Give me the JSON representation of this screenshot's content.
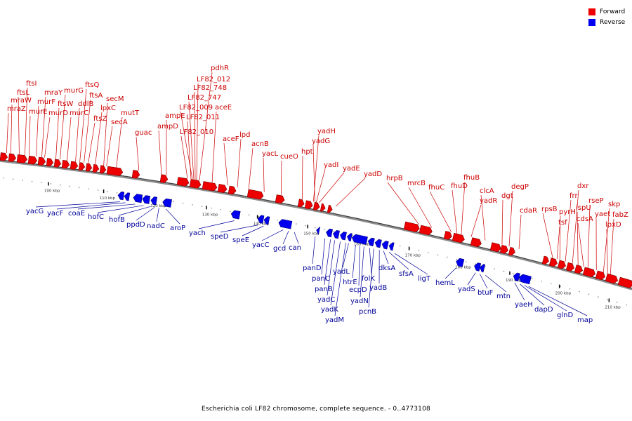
{
  "legend": {
    "forward_label": "Forward",
    "reverse_label": "Reverse",
    "forward_color": "#ee0000",
    "reverse_color": "#0000ee"
  },
  "colors": {
    "forward_label": "#cc0000",
    "reverse_label": "#000099",
    "axis": "#777777"
  },
  "caption": "Escherichia coli LF82 chromosome, complete sequence. - 0..4773108",
  "ticks": [
    "100 kbp",
    "110 kbp",
    "120 kbp",
    "130 kbp",
    "140 kbp",
    "150 kbp",
    "160 kbp",
    "170 kbp",
    "180 kbp",
    "190 kbp",
    "200 kbp",
    "210 kbp"
  ],
  "forward_genes": [
    "mraZ",
    "mraW",
    "ftsL",
    "ftsI",
    "murE",
    "murF",
    "mraY",
    "murD",
    "ftsW",
    "murG",
    "murC",
    "ddlB",
    "ftsQ",
    "ftsA",
    "ftsZ",
    "lpxC",
    "secM",
    "secA",
    "mutT",
    "guac",
    "ampD",
    "ampE",
    "LF82_010",
    "LF82_011",
    "LF82_009",
    "LF82_747",
    "LF82_748",
    "LF82_012",
    "pdhR",
    "aceE",
    "aceF",
    "lpd",
    "acnB",
    "yacL",
    "cueO",
    "hpt",
    "yadI",
    "yadG",
    "yadH",
    "yadE",
    "yadD",
    "hrpB",
    "mrcB",
    "fhuC",
    "fhuD",
    "fhuB",
    "yadR",
    "clcA",
    "dgt",
    "degP",
    "cdaR",
    "rpsB",
    "tsf",
    "pyrH",
    "frr",
    "dxr",
    "ispU",
    "cdsA",
    "rseP",
    "yaet",
    "skp",
    "fabZ",
    "lpxD"
  ],
  "reverse_genes": [
    "yacG",
    "yacF",
    "coaE",
    "hofC",
    "hofB",
    "ppdD",
    "nadC",
    "aroP",
    "yach",
    "speD",
    "speE",
    "yacC",
    "gcd",
    "can",
    "panD",
    "panC",
    "panB",
    "yadC",
    "yadK",
    "yadM",
    "yadL",
    "htrE",
    "ecpD",
    "yadN",
    "folK",
    "pcnB",
    "yadB",
    "dksA",
    "sfsA",
    "ligT",
    "hemL",
    "yadS",
    "btuF",
    "mtn",
    "yaeH",
    "dapD",
    "glnD",
    "map"
  ]
}
